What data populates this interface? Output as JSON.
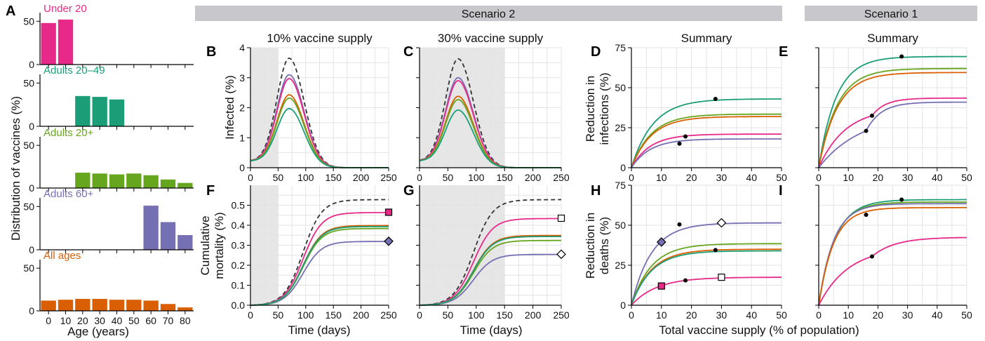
{
  "colors": {
    "under20": "#e7298a",
    "a2049": "#1b9e77",
    "a20p": "#66a61e",
    "a60p": "#7570b3",
    "all": "#d95f02",
    "none": "#333333",
    "banner": "#c8c8cc",
    "shade": "#e6e6e6"
  },
  "banners": {
    "scenario2": "Scenario 2",
    "scenario1": "Scenario 1"
  },
  "text": {
    "ylabel_A": "Distribution of vaccines (%)",
    "xlabel_A": "Age (years)",
    "ylabel_B": "Infected (%)",
    "ylabel_F": "Cumulative mortality (%)",
    "ylabel_D": "Reduction in infections (%)",
    "ylabel_H": "Reduction in deaths (%)",
    "xlabel_time": "Time (days)",
    "xlabel_supply": "Total vaccine supply (% of population)"
  },
  "chart_data": [
    {
      "panel": "A",
      "type": "bar",
      "xlabel": "Age (years)",
      "ylabel": "Distribution of vaccines (%)",
      "age_groups": [
        "0-9",
        "10-19",
        "20-29",
        "30-39",
        "40-49",
        "50-59",
        "60-69",
        "70-79",
        "80+"
      ],
      "x_ticks": [
        "0",
        "10",
        "20",
        "30",
        "40",
        "50",
        "60",
        "70",
        "80"
      ],
      "y_ticks": [
        "0",
        "50"
      ],
      "ylim": [
        0,
        60
      ],
      "series": [
        {
          "name": "Under 20",
          "key": "under20",
          "values": [
            48,
            52,
            0,
            0,
            0,
            0,
            0,
            0,
            0
          ]
        },
        {
          "name": "Adults 20–49",
          "key": "a2049",
          "values": [
            0,
            0,
            35,
            34,
            31,
            0,
            0,
            0,
            0
          ]
        },
        {
          "name": "Adults 20+",
          "key": "a20p",
          "values": [
            0,
            0,
            18,
            17,
            16,
            17,
            15,
            10,
            6
          ]
        },
        {
          "name": "Adults 60+",
          "key": "a60p",
          "values": [
            0,
            0,
            0,
            0,
            0,
            0,
            51,
            32,
            17
          ]
        },
        {
          "name": "All ages",
          "key": "all",
          "values": [
            12,
            13,
            14,
            14,
            13,
            13,
            12,
            8,
            4
          ]
        }
      ]
    },
    {
      "panel": "B",
      "type": "line",
      "title": "10% vaccine supply",
      "xlim": [
        0,
        250
      ],
      "ylim": [
        0,
        4
      ],
      "x_ticks": [
        0,
        50,
        100,
        150,
        200,
        250
      ],
      "y_ticks": [
        0,
        1,
        2,
        3,
        4
      ],
      "shade_end": 50,
      "peak_day": 70,
      "peaks": {
        "none": 3.65,
        "a60p": 3.1,
        "under20": 2.97,
        "all": 2.43,
        "a20p": 2.32,
        "a2049": 1.97
      }
    },
    {
      "panel": "C",
      "type": "line",
      "title": "30% vaccine supply",
      "xlim": [
        0,
        250
      ],
      "ylim": [
        0,
        4
      ],
      "x_ticks": [
        0,
        50,
        100,
        150,
        200,
        250
      ],
      "y_ticks": [
        0,
        1,
        2,
        3,
        4
      ],
      "shade_end": 150,
      "peak_day": 68,
      "peaks": {
        "none": 3.63,
        "a60p": 3.0,
        "under20": 2.9,
        "all": 2.38,
        "a20p": 2.27,
        "a2049": 1.92
      }
    },
    {
      "panel": "D",
      "type": "line",
      "title": "Summary",
      "xlim": [
        0,
        50
      ],
      "ylim": [
        0,
        75
      ],
      "x_ticks": [
        0,
        10,
        20,
        30,
        40,
        50
      ],
      "y_ticks": [
        0,
        25,
        50,
        75
      ],
      "plateaus": {
        "a2049": 43,
        "a20p": 33.5,
        "all": 32,
        "under20": 21,
        "a60p": 18
      },
      "dots": [
        {
          "key": "a2049",
          "x": 28,
          "y": 43
        },
        {
          "key": "all",
          "x": 18,
          "y": 19.5
        },
        {
          "key": "a60p",
          "x": 16,
          "y": 15
        }
      ]
    },
    {
      "panel": "E",
      "type": "line",
      "title": "Summary",
      "xlim": [
        0,
        50
      ],
      "ylim": [
        0,
        75
      ],
      "plateaus": {
        "a2049": 69.5,
        "a20p": 62,
        "all": 59.5,
        "under20": 43.5,
        "a60p": 41
      },
      "dots": [
        {
          "key": "a2049",
          "x": 28,
          "y": 69.5
        },
        {
          "key": "under20",
          "x": 18,
          "y": 32.5
        },
        {
          "key": "a60p",
          "x": 16,
          "y": 23
        }
      ]
    },
    {
      "panel": "F",
      "type": "line",
      "xlim": [
        0,
        250
      ],
      "ylim": [
        0,
        0.6
      ],
      "x_ticks": [
        0,
        50,
        100,
        150,
        200,
        250
      ],
      "y_ticks": [
        0.0,
        0.1,
        0.2,
        0.3,
        0.4,
        0.5
      ],
      "shade_end": 50,
      "finals": {
        "none": 0.53,
        "under20": 0.465,
        "all": 0.4,
        "a2049": 0.395,
        "a20p": 0.385,
        "a60p": 0.32
      },
      "markers": [
        {
          "key": "under20",
          "shape": "square",
          "filled": true
        },
        {
          "key": "a60p",
          "shape": "diamond",
          "filled": true
        }
      ]
    },
    {
      "panel": "G",
      "type": "line",
      "xlim": [
        0,
        250
      ],
      "ylim": [
        0,
        0.6
      ],
      "x_ticks": [
        0,
        50,
        100,
        150,
        200,
        250
      ],
      "shade_end": 150,
      "finals": {
        "none": 0.53,
        "under20": 0.435,
        "all": 0.35,
        "a2049": 0.345,
        "a20p": 0.325,
        "a60p": 0.255
      },
      "markers": [
        {
          "key": "under20",
          "shape": "square",
          "filled": false
        },
        {
          "key": "a60p",
          "shape": "diamond",
          "filled": false
        }
      ]
    },
    {
      "panel": "H",
      "type": "line",
      "xlim": [
        0,
        50
      ],
      "ylim": [
        0,
        75
      ],
      "x_ticks": [
        0,
        10,
        20,
        30,
        40,
        50
      ],
      "y_ticks": [
        0,
        25,
        50,
        75
      ],
      "plateaus": {
        "a60p": 51.5,
        "a20p": 38.5,
        "all": 35,
        "a2049": 34,
        "under20": 17.5
      },
      "dots": [
        {
          "key": "a60p",
          "x": 16,
          "y": 50.5
        },
        {
          "key": "a2049",
          "x": 28,
          "y": 34.5
        },
        {
          "key": "under20",
          "x": 18,
          "y": 15.5
        }
      ],
      "markers": [
        {
          "key": "a60p",
          "x": 10,
          "y": 39.5,
          "shape": "diamond",
          "filled": true
        },
        {
          "key": "a60p",
          "x": 30,
          "y": 51.5,
          "shape": "diamond",
          "filled": false
        },
        {
          "key": "under20",
          "x": 10,
          "y": 12,
          "shape": "square",
          "filled": true
        },
        {
          "key": "under20",
          "x": 30,
          "y": 17.5,
          "shape": "square",
          "filled": false
        }
      ]
    },
    {
      "panel": "I",
      "type": "line",
      "xlim": [
        0,
        50
      ],
      "ylim": [
        0,
        75
      ],
      "x_ticks": [
        0,
        10,
        20,
        30,
        40,
        50
      ],
      "plateaus": {
        "a2049": 66,
        "a20p": 64.5,
        "a60p": 63.5,
        "all": 61,
        "under20": 42.5
      },
      "dots": [
        {
          "key": "a2049",
          "x": 28,
          "y": 66
        },
        {
          "key": "a60p",
          "x": 16,
          "y": 56.5
        },
        {
          "key": "under20",
          "x": 18,
          "y": 30.5
        }
      ]
    }
  ]
}
